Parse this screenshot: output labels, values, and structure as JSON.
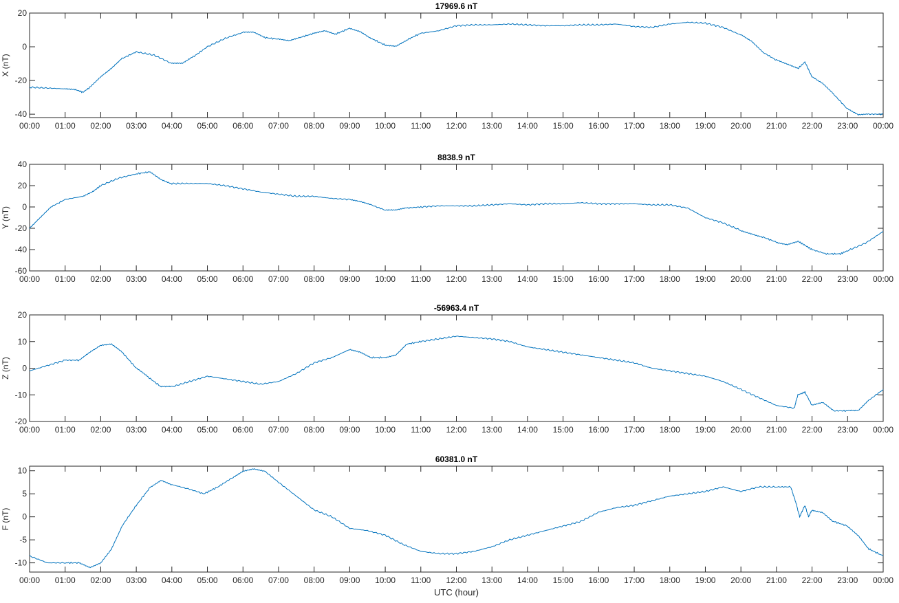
{
  "chart_data": [
    {
      "type": "line",
      "title": "17969.6 nT",
      "ylabel": "X (nT)",
      "xlabel": "",
      "ylim": [
        -42,
        20
      ],
      "yticks": [
        -40,
        -20,
        0,
        20
      ],
      "xticks": [
        "00:00",
        "01:00",
        "02:00",
        "03:00",
        "04:00",
        "05:00",
        "06:00",
        "07:00",
        "08:00",
        "09:00",
        "10:00",
        "11:00",
        "12:00",
        "13:00",
        "14:00",
        "15:00",
        "16:00",
        "17:00",
        "18:00",
        "19:00",
        "20:00",
        "21:00",
        "22:00",
        "23:00",
        "00:00"
      ],
      "grid": false,
      "color": "#0072bd",
      "series": [
        {
          "x": [
            0,
            0.5,
            1,
            1.3,
            1.5,
            1.7,
            2,
            2.3,
            2.6,
            3,
            3.5,
            4,
            4.3,
            4.6,
            5,
            5.5,
            6,
            6.3,
            6.6,
            7,
            7.3,
            7.6,
            8,
            8.3,
            8.6,
            9,
            9.3,
            9.6,
            10,
            10.3,
            10.6,
            11,
            11.5,
            12,
            12.5,
            13,
            13.5,
            14,
            14.5,
            15,
            15.5,
            16,
            16.5,
            17,
            17.5,
            18,
            18.5,
            19,
            19.5,
            20,
            20.3,
            20.6,
            21,
            21.3,
            21.6,
            21.8,
            22,
            22.3,
            22.6,
            23,
            23.3,
            23.6,
            24
          ],
          "y": [
            -24,
            -24.5,
            -25,
            -25.5,
            -27,
            -24,
            -18,
            -13,
            -7,
            -3,
            -5,
            -10,
            -10,
            -6,
            0,
            5,
            8.5,
            8.5,
            5.5,
            4.5,
            3.5,
            5.5,
            8,
            9.5,
            7.5,
            11,
            9,
            5,
            1,
            0.5,
            4,
            8,
            9.5,
            12.5,
            13,
            13,
            13.5,
            13,
            12.5,
            12.5,
            13,
            13,
            13.5,
            12,
            11.5,
            13.5,
            14.5,
            14,
            11.5,
            7,
            3,
            -3,
            -8,
            -10.5,
            -13,
            -9,
            -18,
            -22,
            -28,
            -37,
            -40.5,
            -40,
            -40
          ]
        }
      ]
    },
    {
      "type": "line",
      "title": "8838.9 nT",
      "ylabel": "Y (nT)",
      "xlabel": "",
      "ylim": [
        -60,
        40
      ],
      "yticks": [
        -60,
        -40,
        -20,
        0,
        20,
        40
      ],
      "xticks": [
        "00:00",
        "01:00",
        "02:00",
        "03:00",
        "04:00",
        "05:00",
        "06:00",
        "07:00",
        "08:00",
        "09:00",
        "10:00",
        "11:00",
        "12:00",
        "13:00",
        "14:00",
        "15:00",
        "16:00",
        "17:00",
        "18:00",
        "19:00",
        "20:00",
        "21:00",
        "22:00",
        "23:00",
        "00:00"
      ],
      "grid": false,
      "color": "#0072bd",
      "series": [
        {
          "x": [
            0,
            0.3,
            0.6,
            1,
            1.5,
            1.8,
            2,
            2.5,
            3,
            3.4,
            3.7,
            4,
            4.5,
            5,
            5.5,
            6,
            6.5,
            7,
            7.5,
            8,
            8.5,
            9,
            9.3,
            9.6,
            10,
            10.3,
            10.6,
            11,
            11.5,
            12,
            12.5,
            13,
            13.5,
            14,
            14.5,
            15,
            15.5,
            16,
            16.5,
            17,
            17.5,
            18,
            18.5,
            19,
            19.5,
            20,
            20.3,
            20.6,
            21,
            21.3,
            21.6,
            21.8,
            22,
            22.4,
            22.8,
            23,
            23.5,
            24
          ],
          "y": [
            -20,
            -10,
            0,
            7,
            10,
            15,
            20,
            27,
            31,
            33,
            26,
            22,
            22,
            22,
            20,
            17,
            14,
            12,
            10,
            10,
            8,
            7,
            5,
            2,
            -3,
            -3,
            -1,
            0,
            1,
            1,
            1,
            2,
            3,
            2,
            3,
            3,
            4,
            3,
            3,
            3,
            2,
            2,
            -1,
            -10,
            -15,
            -22,
            -25,
            -28,
            -33,
            -35,
            -32,
            -36,
            -40,
            -44,
            -44,
            -41,
            -34,
            -23
          ]
        }
      ]
    },
    {
      "type": "line",
      "title": "-56963.4 nT",
      "ylabel": "Z (nT)",
      "xlabel": "",
      "ylim": [
        -20,
        20
      ],
      "yticks": [
        -20,
        -10,
        0,
        10,
        20
      ],
      "xticks": [
        "00:00",
        "01:00",
        "02:00",
        "03:00",
        "04:00",
        "05:00",
        "06:00",
        "07:00",
        "08:00",
        "09:00",
        "10:00",
        "11:00",
        "12:00",
        "13:00",
        "14:00",
        "15:00",
        "16:00",
        "17:00",
        "18:00",
        "19:00",
        "20:00",
        "21:00",
        "22:00",
        "23:00",
        "00:00"
      ],
      "grid": false,
      "color": "#0072bd",
      "series": [
        {
          "x": [
            0,
            0.5,
            1,
            1.4,
            1.7,
            2,
            2.3,
            2.6,
            3,
            3.3,
            3.7,
            4,
            4.5,
            5,
            5.5,
            6,
            6.5,
            7,
            7.5,
            8,
            8.5,
            9,
            9.3,
            9.6,
            10,
            10.3,
            10.6,
            11,
            11.5,
            12,
            12.5,
            13,
            13.5,
            14,
            14.5,
            15,
            15.5,
            16,
            16.5,
            17,
            17.5,
            18,
            18.5,
            19,
            19.5,
            20,
            20.5,
            21,
            21.5,
            21.6,
            21.8,
            22,
            22.3,
            22.6,
            23,
            23.3,
            23.6,
            24
          ],
          "y": [
            -1,
            1,
            3,
            3,
            6,
            8.5,
            9,
            6,
            0,
            -3,
            -7,
            -7,
            -5,
            -3,
            -4,
            -5,
            -6,
            -5,
            -2,
            2,
            4,
            7,
            6,
            4,
            4,
            5,
            9,
            10,
            11,
            12,
            11.5,
            11,
            10,
            8,
            7,
            6,
            5,
            4,
            3,
            2,
            0,
            -1,
            -2,
            -3,
            -5,
            -8,
            -11,
            -14,
            -15,
            -10,
            -9,
            -14,
            -13,
            -16,
            -16,
            -16,
            -12,
            -8
          ]
        }
      ]
    },
    {
      "type": "line",
      "title": "60381.0 nT",
      "ylabel": "F (nT)",
      "xlabel": "UTC (hour)",
      "ylim": [
        -12,
        11
      ],
      "yticks": [
        -10,
        -5,
        0,
        5,
        10
      ],
      "xticks": [
        "00:00",
        "01:00",
        "02:00",
        "03:00",
        "04:00",
        "05:00",
        "06:00",
        "07:00",
        "08:00",
        "09:00",
        "10:00",
        "11:00",
        "12:00",
        "13:00",
        "14:00",
        "15:00",
        "16:00",
        "17:00",
        "18:00",
        "19:00",
        "20:00",
        "21:00",
        "22:00",
        "23:00",
        "00:00"
      ],
      "grid": false,
      "color": "#0072bd",
      "series": [
        {
          "x": [
            0,
            0.5,
            1,
            1.4,
            1.7,
            2,
            2.3,
            2.6,
            3,
            3.4,
            3.7,
            4,
            4.5,
            4.9,
            5.3,
            5.7,
            6,
            6.3,
            6.6,
            7,
            7.5,
            8,
            8.5,
            9,
            9.5,
            10,
            10.5,
            11,
            11.5,
            12,
            12.5,
            13,
            13.5,
            14,
            14.5,
            15,
            15.5,
            16,
            16.5,
            17,
            17.5,
            18,
            18.5,
            19,
            19.5,
            20,
            20.5,
            21,
            21.4,
            21.55,
            21.65,
            21.8,
            21.9,
            22,
            22.3,
            22.6,
            23,
            23.3,
            23.6,
            24
          ],
          "y": [
            -8.5,
            -10,
            -10,
            -10,
            -11,
            -10,
            -7,
            -2,
            2.5,
            6.5,
            8,
            7,
            6,
            5,
            6.5,
            8.5,
            10,
            10.5,
            10,
            7.5,
            4.5,
            1.5,
            0,
            -2.5,
            -3,
            -4,
            -6,
            -7.5,
            -8,
            -8,
            -7.5,
            -6.5,
            -5,
            -4,
            -3,
            -2,
            -1,
            1,
            2,
            2.5,
            3.5,
            4.5,
            5,
            5.5,
            6.5,
            5.5,
            6.5,
            6.5,
            6.5,
            3,
            0,
            2.5,
            0,
            1.5,
            1,
            -1,
            -2,
            -4,
            -7,
            -8.5
          ]
        }
      ]
    }
  ]
}
